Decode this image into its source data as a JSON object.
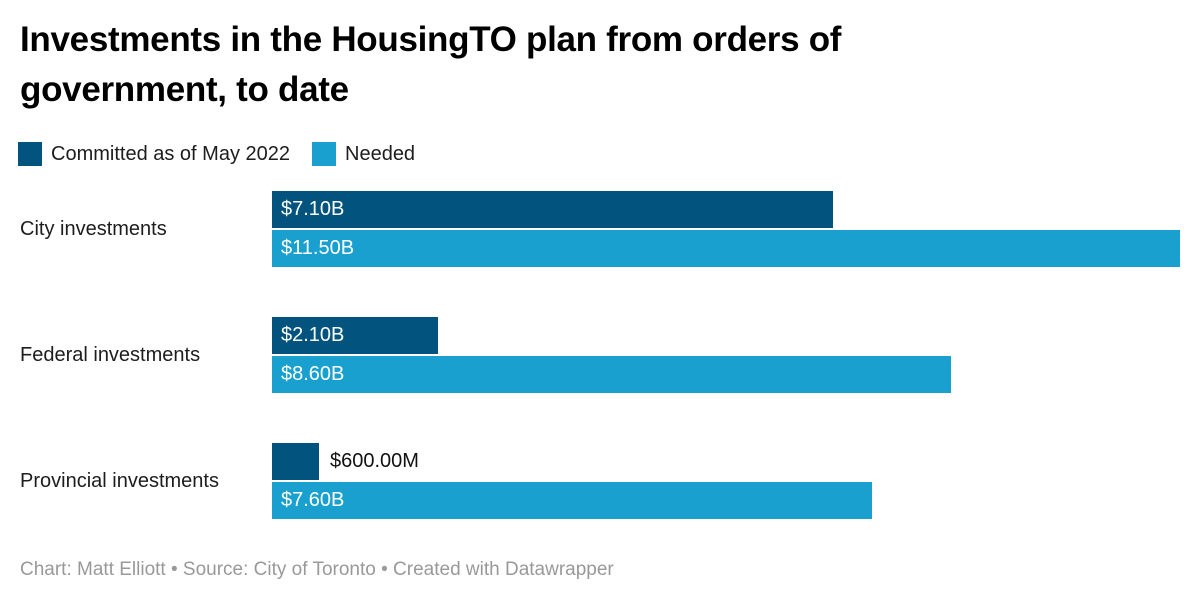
{
  "title": "Investments in the HousingTO plan from orders of government, to date",
  "legend": {
    "items": [
      {
        "label": "Committed as of May 2022",
        "color": "#02547e"
      },
      {
        "label": "Needed",
        "color": "#1aa0ce"
      }
    ]
  },
  "chart_data": {
    "type": "bar",
    "orientation": "horizontal",
    "title": "Investments in the HousingTO plan from orders of government, to date",
    "categories": [
      "City investments",
      "Federal investments",
      "Provincial investments"
    ],
    "series": [
      {
        "name": "Committed as of May 2022",
        "color": "#02547e",
        "values_billions": [
          7.1,
          2.1,
          0.6
        ],
        "labels": [
          "$7.10B",
          "$2.10B",
          "$600.00M"
        ]
      },
      {
        "name": "Needed",
        "color": "#1aa0ce",
        "values_billions": [
          11.5,
          8.6,
          7.6
        ],
        "labels": [
          "$11.50B",
          "$8.60B",
          "$7.60B"
        ]
      }
    ],
    "xlim": [
      0,
      11.5
    ],
    "grid": false,
    "legend_position": "top",
    "value_labels": "on-bars"
  },
  "footer": {
    "text": "Chart: Matt Elliott • Source: City of Toronto • Created with Datawrapper"
  },
  "colors": {
    "committed": "#02547e",
    "needed": "#1aa0ce",
    "background": "#ffffff",
    "title_text": "#000000",
    "body_text": "#1d1d1d",
    "value_inside_text": "#ffffff",
    "value_outside_text": "#111111",
    "footer_text": "#999999"
  }
}
